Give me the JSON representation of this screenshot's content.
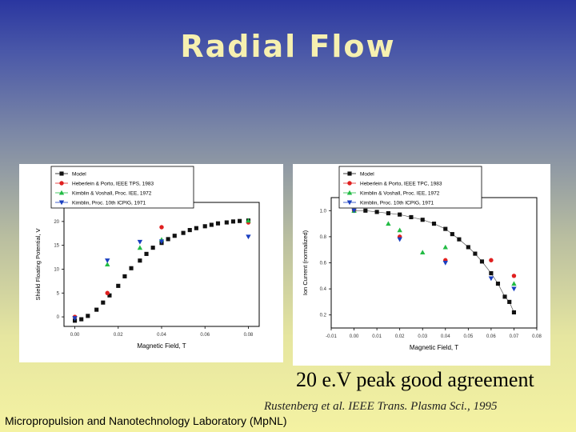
{
  "slide": {
    "title": "Radial Flow",
    "caption_main": "20 e.V peak good agreement",
    "caption_ref": "Rustenberg et al. IEEE Trans. Plasma Sci., 1995",
    "footer": "Micropropulsion and Nanotechnology Laboratory (MpNL)"
  },
  "colors": {
    "model": "#111111",
    "heberlein": "#e02020",
    "kimblin_voshall": "#22bb44",
    "kimblin_icpig": "#1a3fc0"
  },
  "chart_data": [
    {
      "type": "scatter",
      "xlabel": "Magnetic Field, T",
      "ylabel": "Shield Floating Potential, V",
      "xlim": [
        -0.005,
        0.085
      ],
      "ylim": [
        -2,
        24
      ],
      "xticks": [
        "0.00",
        "0.02",
        "0.04",
        "0.06",
        "0.08"
      ],
      "xtick_values": [
        0.0,
        0.02,
        0.04,
        0.06,
        0.08
      ],
      "yticks": [
        "0",
        "5",
        "10",
        "15",
        "20"
      ],
      "ytick_values": [
        0,
        5,
        10,
        15,
        20
      ],
      "legend": "top-left",
      "series": [
        {
          "name": "Model",
          "marker": "square",
          "line": false,
          "x": [
            0.0,
            0.003,
            0.006,
            0.01,
            0.013,
            0.016,
            0.02,
            0.023,
            0.026,
            0.03,
            0.033,
            0.036,
            0.04,
            0.043,
            0.046,
            0.05,
            0.053,
            0.056,
            0.06,
            0.063,
            0.066,
            0.07,
            0.073,
            0.076,
            0.08
          ],
          "y": [
            -0.8,
            -0.5,
            0.2,
            1.5,
            3.0,
            4.5,
            6.5,
            8.5,
            10.2,
            11.8,
            13.2,
            14.5,
            15.5,
            16.3,
            17.0,
            17.6,
            18.2,
            18.6,
            19.0,
            19.3,
            19.6,
            19.8,
            20.0,
            20.1,
            20.2
          ]
        },
        {
          "name": "Heberlein & Porto, IEEE TPS, 1983",
          "marker": "circle",
          "x": [
            0.0,
            0.015,
            0.04,
            0.08
          ],
          "y": [
            0.0,
            5.0,
            18.8,
            19.8
          ]
        },
        {
          "name": "Kimblin & Voshall, Proc. IEE, 1972",
          "marker": "triangle-up",
          "x": [
            0.015,
            0.03,
            0.04,
            0.08
          ],
          "y": [
            11.0,
            14.5,
            16.2,
            20.2
          ]
        },
        {
          "name": "Kimblin, Proc. 10th ICPIG, 1971",
          "marker": "triangle-down",
          "x": [
            0.0,
            0.015,
            0.03,
            0.04,
            0.08
          ],
          "y": [
            -0.3,
            11.8,
            15.7,
            15.8,
            16.8
          ]
        }
      ]
    },
    {
      "type": "line",
      "xlabel": "Magnetic Field, T",
      "ylabel": "Ion Current (normalized)",
      "xlim": [
        -0.01,
        0.08
      ],
      "ylim": [
        0.1,
        1.1
      ],
      "xticks": [
        "-0.01",
        "0.00",
        "0.01",
        "0.02",
        "0.03",
        "0.04",
        "0.05",
        "0.06",
        "0.07",
        "0.08"
      ],
      "xtick_values": [
        -0.01,
        0.0,
        0.01,
        0.02,
        0.03,
        0.04,
        0.05,
        0.06,
        0.07,
        0.08
      ],
      "yticks": [
        "0.2",
        "0.4",
        "0.6",
        "0.8",
        "1.0"
      ],
      "ytick_values": [
        0.2,
        0.4,
        0.6,
        0.8,
        1.0
      ],
      "legend": "top",
      "series": [
        {
          "name": "Model",
          "marker": "square",
          "line": true,
          "x": [
            0.0,
            0.005,
            0.01,
            0.015,
            0.02,
            0.025,
            0.03,
            0.035,
            0.04,
            0.043,
            0.046,
            0.05,
            0.053,
            0.056,
            0.06,
            0.063,
            0.066,
            0.068,
            0.07
          ],
          "y": [
            1.0,
            1.0,
            0.99,
            0.98,
            0.97,
            0.95,
            0.93,
            0.9,
            0.86,
            0.82,
            0.78,
            0.72,
            0.67,
            0.61,
            0.52,
            0.44,
            0.34,
            0.3,
            0.22
          ]
        },
        {
          "name": "Heberlein & Porto, IEEE TPC, 1983",
          "marker": "circle",
          "x": [
            0.0,
            0.02,
            0.04,
            0.06,
            0.07
          ],
          "y": [
            1.0,
            0.8,
            0.62,
            0.62,
            0.5
          ]
        },
        {
          "name": "Kimblin & Voshall, Proc. IEE, 1972",
          "marker": "triangle-up",
          "x": [
            0.0,
            0.015,
            0.02,
            0.03,
            0.04,
            0.07
          ],
          "y": [
            1.0,
            0.9,
            0.85,
            0.68,
            0.72,
            0.44
          ]
        },
        {
          "name": "Kimblin, Proc. 10th ICPIG, 1971",
          "marker": "triangle-down",
          "x": [
            0.0,
            0.02,
            0.04,
            0.06,
            0.07
          ],
          "y": [
            1.0,
            0.78,
            0.6,
            0.48,
            0.4
          ]
        }
      ]
    }
  ]
}
